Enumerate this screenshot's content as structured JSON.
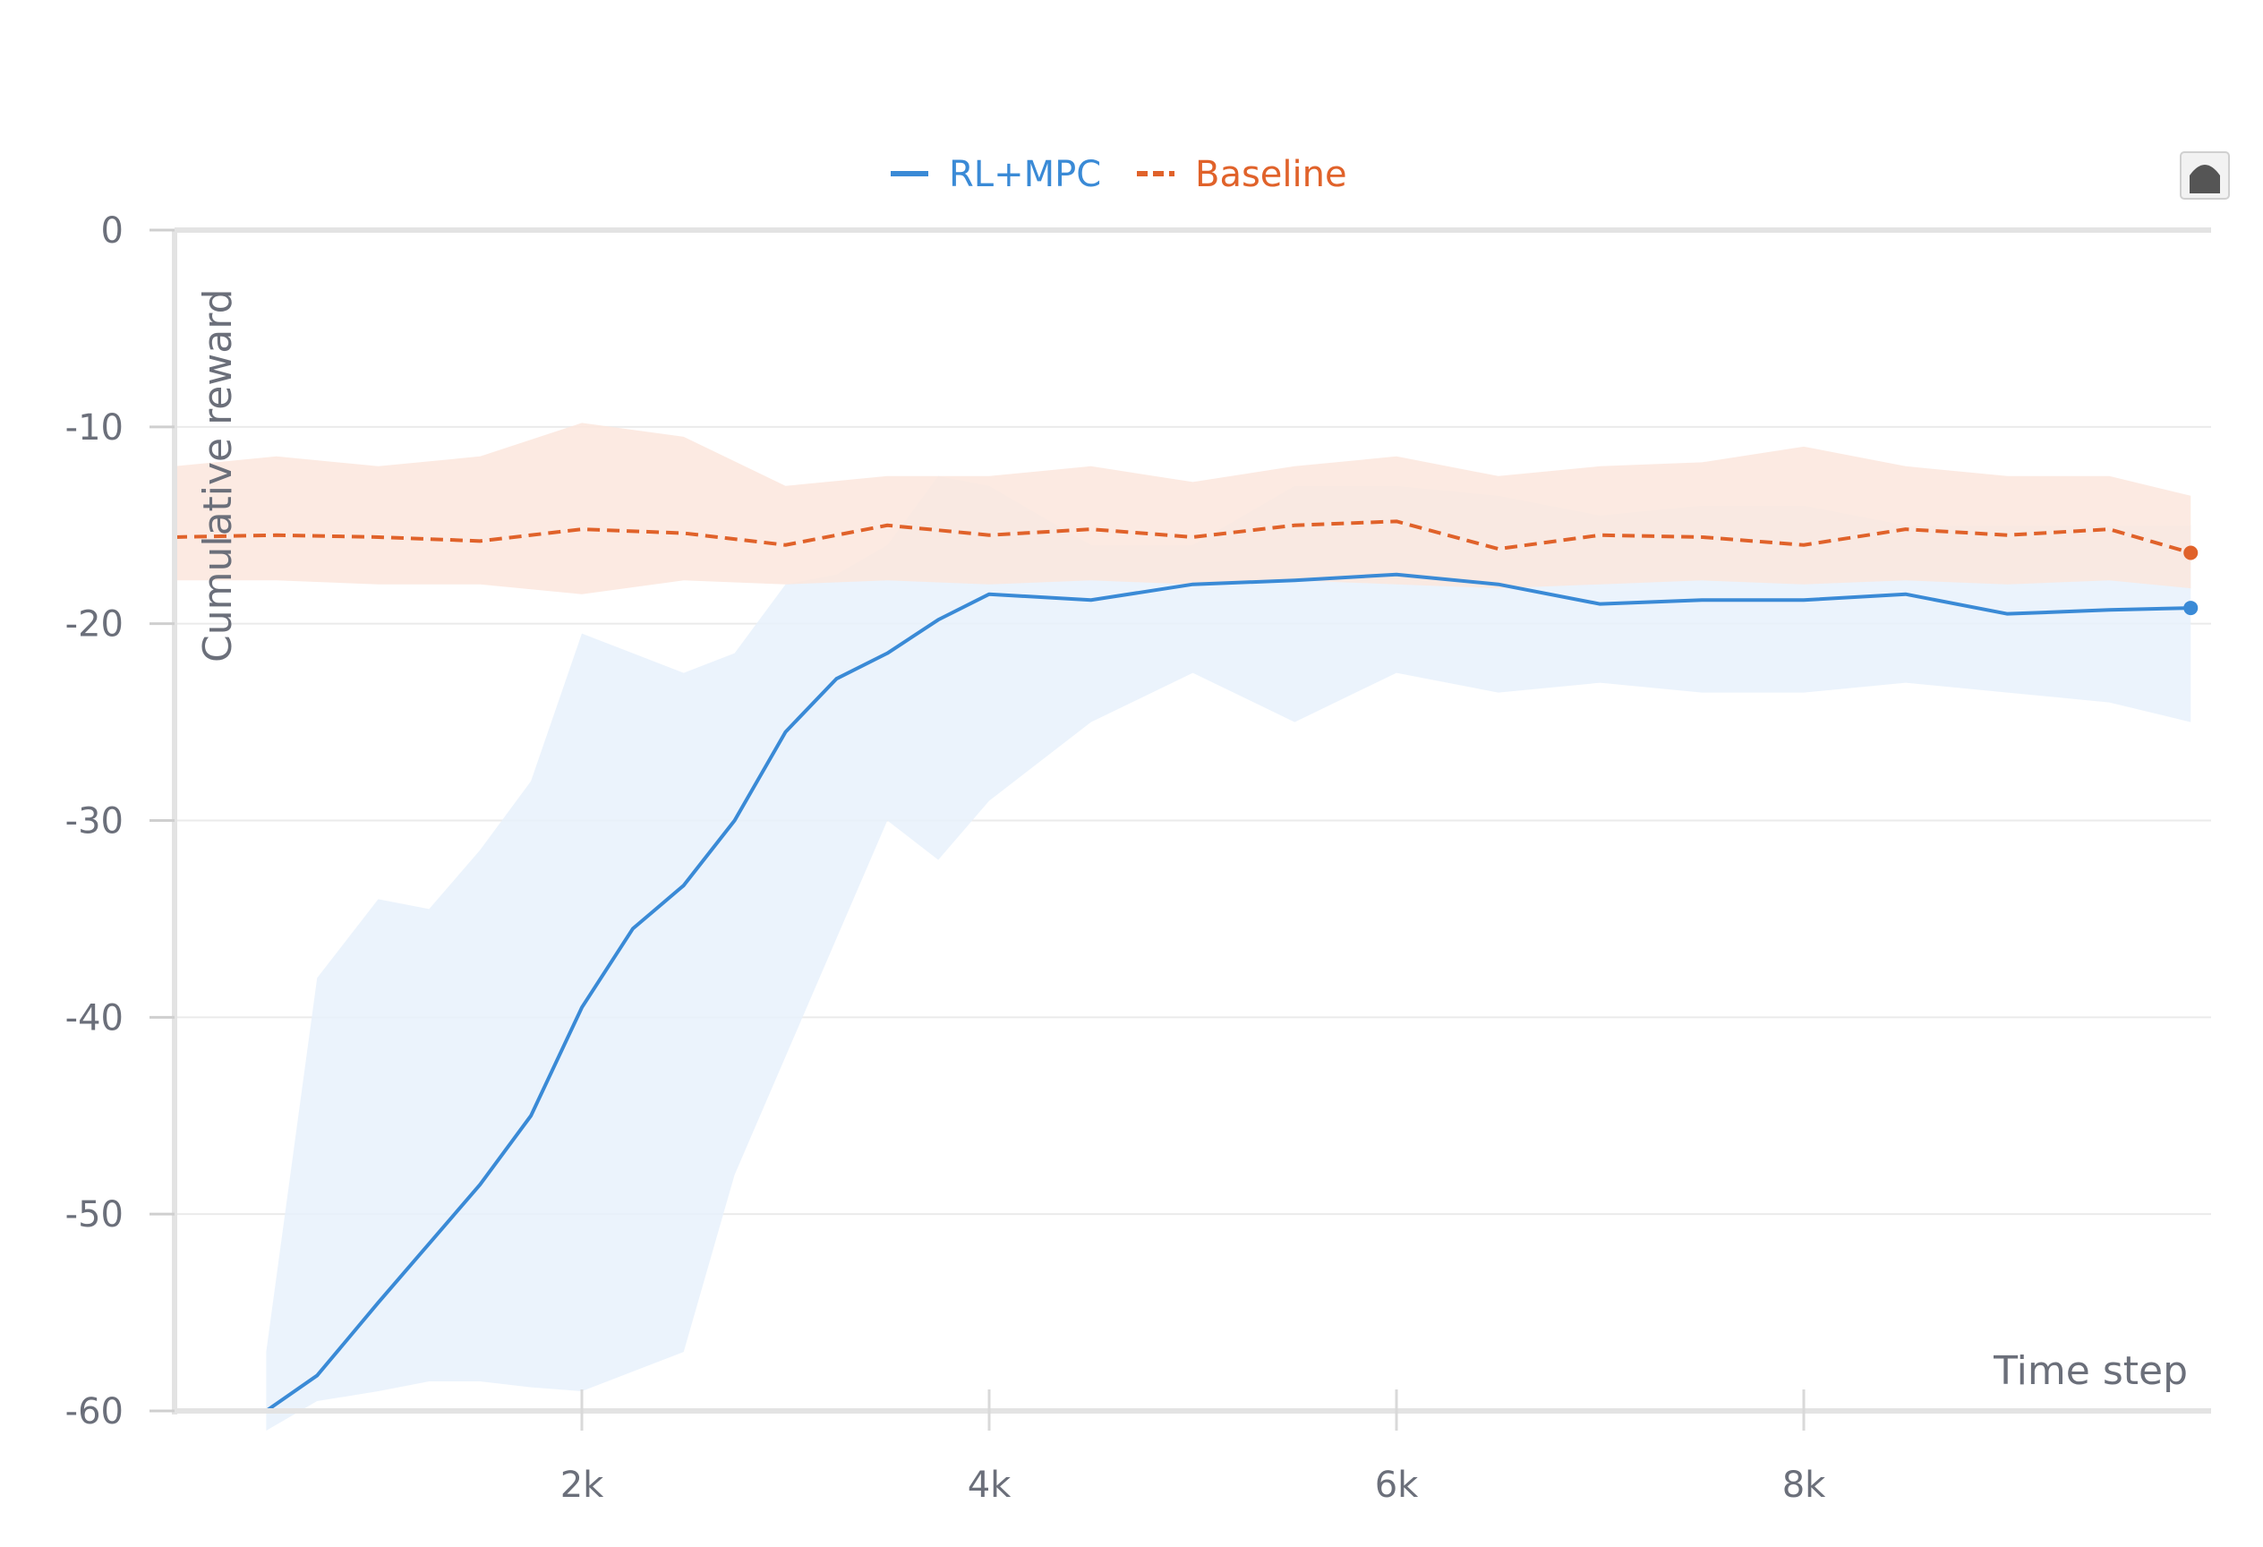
{
  "chart_data": {
    "type": "line",
    "xlabel": "Time step",
    "ylabel": "Cumulative reward",
    "xlim": [
      0,
      10000
    ],
    "ylim": [
      -60,
      0
    ],
    "x_ticks": [
      2000,
      4000,
      6000,
      8000
    ],
    "x_tick_labels": [
      "2k",
      "4k",
      "6k",
      "8k"
    ],
    "y_ticks": [
      0,
      -10,
      -20,
      -30,
      -40,
      -50,
      -60
    ],
    "y_tick_labels": [
      "0",
      "-10",
      "-20",
      "-30",
      "-40",
      "-50",
      "-60"
    ],
    "grid": "horizontal",
    "legend": "top-center",
    "series": [
      {
        "name": "RL+MPC",
        "color": "#3a8ad6",
        "band_color": "#e8f1fb",
        "style": "solid",
        "x": [
          450,
          700,
          1000,
          1250,
          1500,
          1750,
          2000,
          2250,
          2500,
          2750,
          3000,
          3250,
          3500,
          3750,
          4000,
          4500,
          5000,
          5500,
          6000,
          6500,
          7000,
          7500,
          8000,
          8500,
          9000,
          9500,
          9900
        ],
        "values": [
          -60.0,
          -58.2,
          -54.5,
          -51.5,
          -48.5,
          -45.0,
          -39.5,
          -35.5,
          -33.3,
          -30.0,
          -25.5,
          -22.8,
          -21.5,
          -19.8,
          -18.5,
          -18.8,
          -18.0,
          -17.8,
          -17.5,
          -18.0,
          -19.0,
          -18.8,
          -18.8,
          -18.5,
          -19.5,
          -19.3,
          -19.2
        ],
        "upper": [
          -57.0,
          -38.0,
          -34.0,
          -34.5,
          -31.5,
          -28.0,
          -20.5,
          -21.5,
          -22.5,
          -21.5,
          -18.0,
          -17.5,
          -16.0,
          -12.5,
          -13.0,
          -16.0,
          -16.0,
          -13.0,
          -13.0,
          -13.5,
          -14.5,
          -14.0,
          -14.0,
          -15.0,
          -15.0,
          -15.0,
          -15.0
        ],
        "lower": [
          -61.0,
          -59.5,
          -59.0,
          -58.5,
          -58.5,
          -58.8,
          -59.0,
          -58.0,
          -57.0,
          -48.0,
          -42.0,
          -36.0,
          -30.0,
          -32.0,
          -29.0,
          -25.0,
          -22.5,
          -25.0,
          -22.5,
          -23.5,
          -23.0,
          -23.5,
          -23.5,
          -23.0,
          -23.5,
          -24.0,
          -25.0
        ]
      },
      {
        "name": "Baseline",
        "color": "#e0622a",
        "band_color": "#fbe6dd",
        "style": "dashed",
        "x": [
          0,
          500,
          1000,
          1500,
          2000,
          2500,
          3000,
          3500,
          4000,
          4500,
          5000,
          5500,
          6000,
          6500,
          7000,
          7500,
          8000,
          8500,
          9000,
          9500,
          9900
        ],
        "values": [
          -15.6,
          -15.5,
          -15.6,
          -15.8,
          -15.2,
          -15.4,
          -16.0,
          -15.0,
          -15.5,
          -15.2,
          -15.6,
          -15.0,
          -14.8,
          -16.2,
          -15.5,
          -15.6,
          -16.0,
          -15.2,
          -15.5,
          -15.2,
          -16.4
        ],
        "upper": [
          -12.0,
          -11.5,
          -12.0,
          -11.5,
          -9.8,
          -10.5,
          -13.0,
          -12.5,
          -12.5,
          -12.0,
          -12.8,
          -12.0,
          -11.5,
          -12.5,
          -12.0,
          -11.8,
          -11.0,
          -12.0,
          -12.5,
          -12.5,
          -13.5
        ],
        "lower": [
          -17.8,
          -17.8,
          -18.0,
          -18.0,
          -18.5,
          -17.8,
          -18.0,
          -17.8,
          -18.0,
          -17.8,
          -18.0,
          -17.8,
          -18.0,
          -18.2,
          -18.0,
          -17.8,
          -18.0,
          -17.8,
          -18.0,
          -17.8,
          -18.2
        ]
      }
    ]
  }
}
